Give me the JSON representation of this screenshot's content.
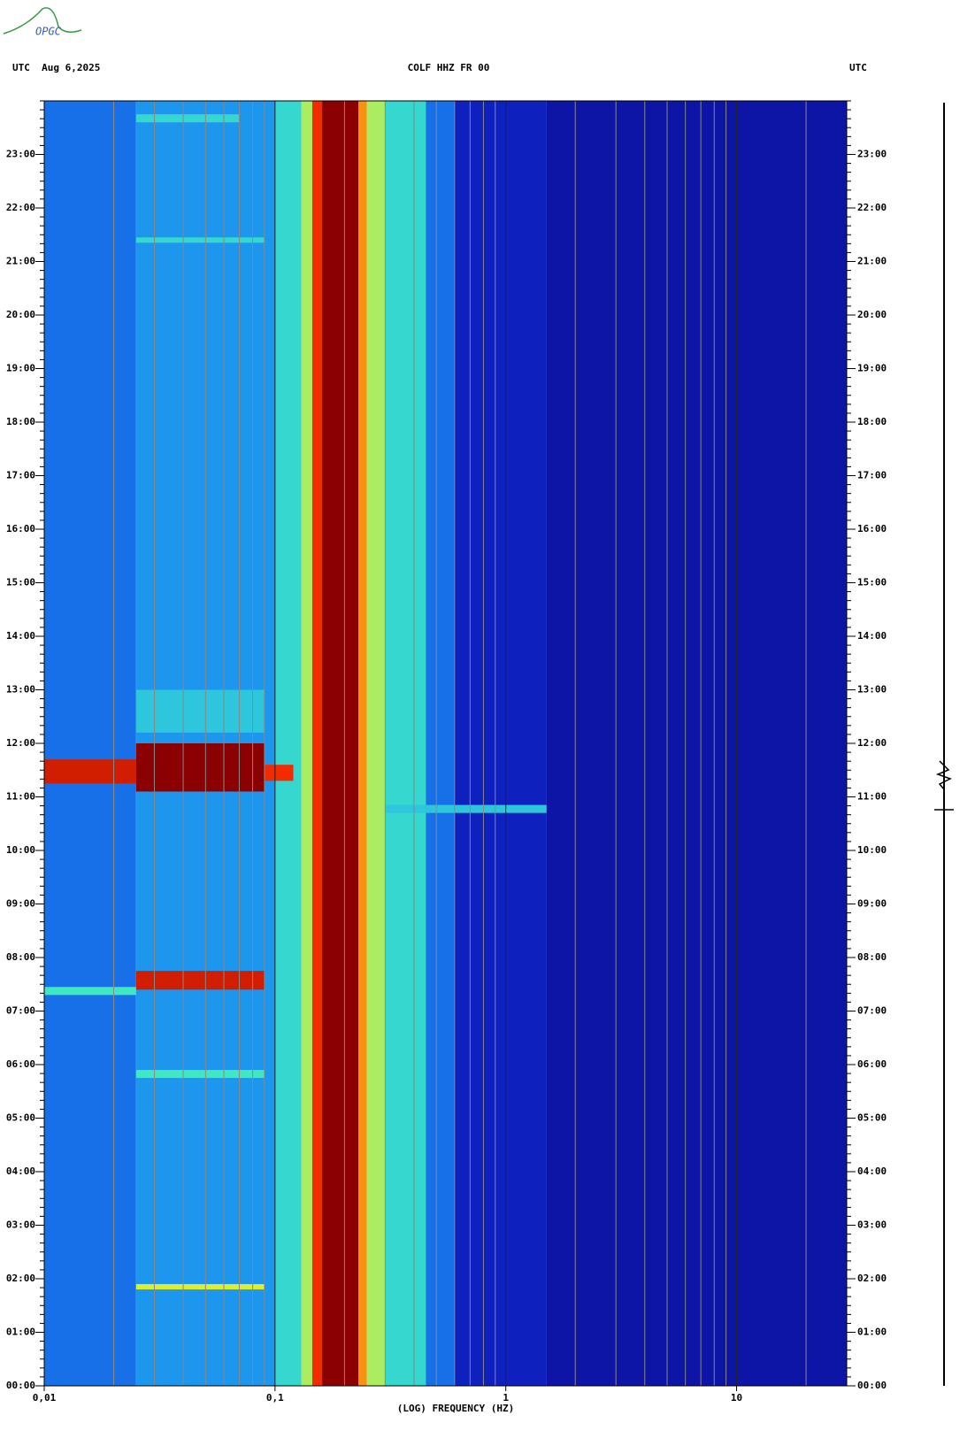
{
  "logo": "OPGC",
  "chart_data": {
    "type": "spectrogram",
    "title": "COLF HHZ FR 00",
    "header_left": "UTC  Aug 6,2025",
    "header_right": "UTC",
    "xlabel": "(LOG) FREQUENCY (HZ)",
    "xscale": "log",
    "xlim": [
      0.01,
      30
    ],
    "xticks": [
      {
        "value": 0.01,
        "label": "0,01"
      },
      {
        "value": 0.1,
        "label": "0,1"
      },
      1,
      10
    ],
    "ylim": [
      0,
      24
    ],
    "yticks": [
      {
        "value": 0,
        "label": "00:00"
      },
      {
        "value": 1,
        "label": "01:00"
      },
      {
        "value": 2,
        "label": "02:00"
      },
      {
        "value": 3,
        "label": "03:00"
      },
      {
        "value": 4,
        "label": "04:00"
      },
      {
        "value": 5,
        "label": "05:00"
      },
      {
        "value": 6,
        "label": "06:00"
      },
      {
        "value": 7,
        "label": "07:00"
      },
      {
        "value": 8,
        "label": "08:00"
      },
      {
        "value": 9,
        "label": "09:00"
      },
      {
        "value": 10,
        "label": "10:00"
      },
      {
        "value": 11,
        "label": "11:00"
      },
      {
        "value": 12,
        "label": "12:00"
      },
      {
        "value": 13,
        "label": "13:00"
      },
      {
        "value": 14,
        "label": "14:00"
      },
      {
        "value": 15,
        "label": "15:00"
      },
      {
        "value": 16,
        "label": "16:00"
      },
      {
        "value": 17,
        "label": "17:00"
      },
      {
        "value": 18,
        "label": "18:00"
      },
      {
        "value": 19,
        "label": "19:00"
      },
      {
        "value": 20,
        "label": "20:00"
      },
      {
        "value": 21,
        "label": "21:00"
      },
      {
        "value": 22,
        "label": "22:00"
      },
      {
        "value": 23,
        "label": "23:00"
      }
    ],
    "freq_bins": [
      0.01,
      0.025,
      0.1,
      0.13,
      0.145,
      0.16,
      0.23,
      0.25,
      0.3,
      0.45,
      0.6,
      1.5,
      30
    ],
    "levels": [
      0.25,
      0.3,
      0.45,
      0.6,
      0.85,
      1,
      0.75,
      0.6,
      0.45,
      0.25,
      0.1,
      0.05
    ],
    "events": [
      {
        "start": 11.25,
        "end": 11.7,
        "fmin": 0.01,
        "fmax": 0.025,
        "level": 0.9
      },
      {
        "start": 11.1,
        "end": 12.0,
        "fmin": 0.025,
        "fmax": 0.09,
        "level": 1
      },
      {
        "start": 11.3,
        "end": 11.6,
        "fmin": 0.09,
        "fmax": 0.12,
        "level": 0.85
      },
      {
        "start": 7.4,
        "end": 7.75,
        "fmin": 0.025,
        "fmax": 0.09,
        "level": 0.9
      },
      {
        "start": 7.3,
        "end": 7.45,
        "fmin": 0.01,
        "fmax": 0.025,
        "level": 0.5
      },
      {
        "start": 1.8,
        "end": 1.9,
        "fmin": 0.025,
        "fmax": 0.09,
        "level": 0.65
      },
      {
        "start": 10.7,
        "end": 10.85,
        "fmin": 0.3,
        "fmax": 1.5,
        "level": 0.4
      },
      {
        "start": 5.75,
        "end": 5.9,
        "fmin": 0.025,
        "fmax": 0.09,
        "level": 0.5
      },
      {
        "start": 23.6,
        "end": 23.75,
        "fmin": 0.025,
        "fmax": 0.07,
        "level": 0.45
      },
      {
        "start": 21.35,
        "end": 21.45,
        "fmin": 0.025,
        "fmax": 0.09,
        "level": 0.45
      },
      {
        "start": 12.2,
        "end": 13.0,
        "fmin": 0.025,
        "fmax": 0.09,
        "level": 0.4
      }
    ],
    "colormap": [
      "#0a0a8c",
      "#1030e0",
      "#20b0f0",
      "#40e8c0",
      "#f0f020",
      "#ff3000",
      "#8b0000"
    ]
  }
}
